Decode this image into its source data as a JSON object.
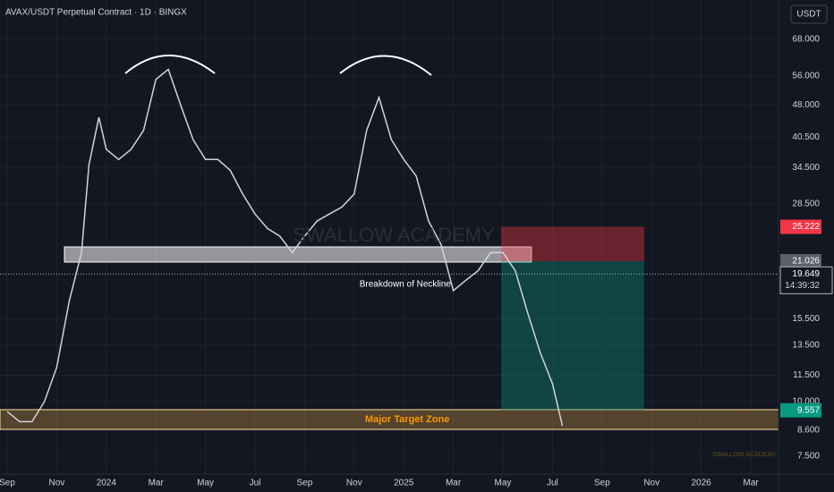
{
  "chart_data": {
    "type": "line",
    "title": "AVAX/USDT Perpetual Contract · 1D · BINGX",
    "currency": "USDT",
    "watermark": "SWALLOW ACADEMY",
    "color": "#d1d4dc",
    "x": [
      0,
      0.5,
      1,
      1.5,
      2,
      2.5,
      3,
      3.3,
      3.7,
      4,
      4.5,
      5,
      5.5,
      6,
      6.5,
      7,
      7.5,
      8,
      8.5,
      9,
      9.5,
      10,
      10.5,
      11,
      11.5,
      12,
      12.5,
      13,
      13.5,
      14,
      14.5,
      15,
      15.5,
      16,
      16.5,
      17,
      17.5,
      18,
      18.5,
      19,
      19.5,
      20,
      20.5,
      21,
      21.5,
      22,
      22.4
    ],
    "values": [
      9.5,
      9,
      9,
      10,
      12,
      17,
      22,
      35,
      45,
      38,
      36,
      38,
      42,
      55,
      58,
      48,
      40,
      36,
      36,
      34,
      30,
      27,
      25,
      24,
      22,
      24,
      26,
      27,
      28,
      30,
      42,
      50,
      40,
      36,
      33,
      26,
      23,
      18,
      19,
      20,
      22,
      22,
      20,
      16,
      13,
      11,
      8.8
    ],
    "xlim": [
      -0.29,
      31.12
    ],
    "xticks": [
      {
        "value": 0,
        "label": "Sep"
      },
      {
        "value": 2,
        "label": "Nov"
      },
      {
        "value": 4,
        "label": "2024"
      },
      {
        "value": 6,
        "label": "Mar"
      },
      {
        "value": 8,
        "label": "May"
      },
      {
        "value": 10,
        "label": "Jul"
      },
      {
        "value": 12,
        "label": "Sep"
      },
      {
        "value": 14,
        "label": "Nov"
      },
      {
        "value": 16,
        "label": "2025"
      },
      {
        "value": 18,
        "label": "Mar"
      },
      {
        "value": 20,
        "label": "May"
      },
      {
        "value": 22,
        "label": "Jul"
      },
      {
        "value": 24,
        "label": "Sep"
      },
      {
        "value": 26,
        "label": "Nov"
      },
      {
        "value": 28,
        "label": "2026"
      },
      {
        "value": 30,
        "label": "Mar"
      }
    ],
    "ylim": [
      6.82,
      83.7
    ],
    "log_scale": true,
    "grid": true,
    "yticks": [
      {
        "value": 7.5,
        "label": "7.500"
      },
      {
        "value": 8.6,
        "label": "8.600"
      },
      {
        "value": 10,
        "label": "10.000"
      },
      {
        "value": 11.5,
        "label": "11.500"
      },
      {
        "value": 13.5,
        "label": "13.500"
      },
      {
        "value": 15.5,
        "label": "15.500"
      },
      {
        "value": 28.5,
        "label": "28.500"
      },
      {
        "value": 34.5,
        "label": "34.500"
      },
      {
        "value": 40.5,
        "label": "40.500"
      },
      {
        "value": 48,
        "label": "48.000"
      },
      {
        "value": 56,
        "label": "56.000"
      },
      {
        "value": 68,
        "label": "68.000"
      }
    ],
    "price_labels": [
      25.222,
      21.026,
      19.649,
      9.557
    ],
    "price_label_colors": [
      "#f23645",
      "#5d606b",
      "#131722",
      "#089981"
    ],
    "countdown": "14:39:32",
    "position": {
      "x_start": 19.93,
      "x_end": 25.7,
      "entry": 21.026,
      "stop": 25.222,
      "target": 9.557
    },
    "neckline_zone": {
      "x_start": 2.31,
      "x_end": 21.15,
      "low": 20.93,
      "high": 22.68
    },
    "target_zone": {
      "low": 8.64,
      "high": 9.59
    },
    "annotations": [
      {
        "text": "Breakdown of Neckline",
        "x": 16.06,
        "y": 18.6
      },
      {
        "text": "Major Target Zone",
        "x": 16.14,
        "y": 9.1
      }
    ]
  }
}
